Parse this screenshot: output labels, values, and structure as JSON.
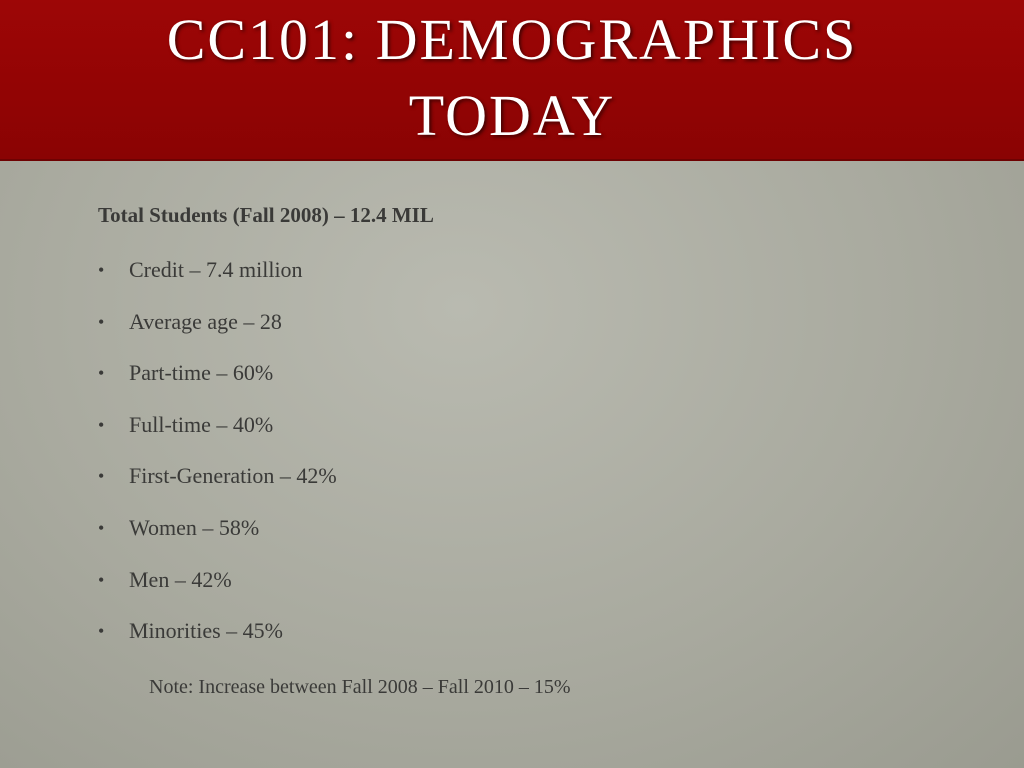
{
  "slide": {
    "title_line1": "CC101: DEMOGRAPHICS",
    "title_line2": "TODAY",
    "heading": "Total Students (Fall 2008) – 12.4 MIL",
    "bullets": [
      "Credit – 7.4 million",
      "Average age – 28",
      "Part-time – 60%",
      "Full-time – 40%",
      "First-Generation – 42%",
      "Women – 58%",
      "Men – 42%",
      "Minorities – 45%"
    ],
    "note": "Note:  Increase between Fall 2008 – Fall 2010 – 15%",
    "colors": {
      "title_band": "#940404",
      "background": "#aeafa5",
      "text": "#3a3a38"
    }
  }
}
